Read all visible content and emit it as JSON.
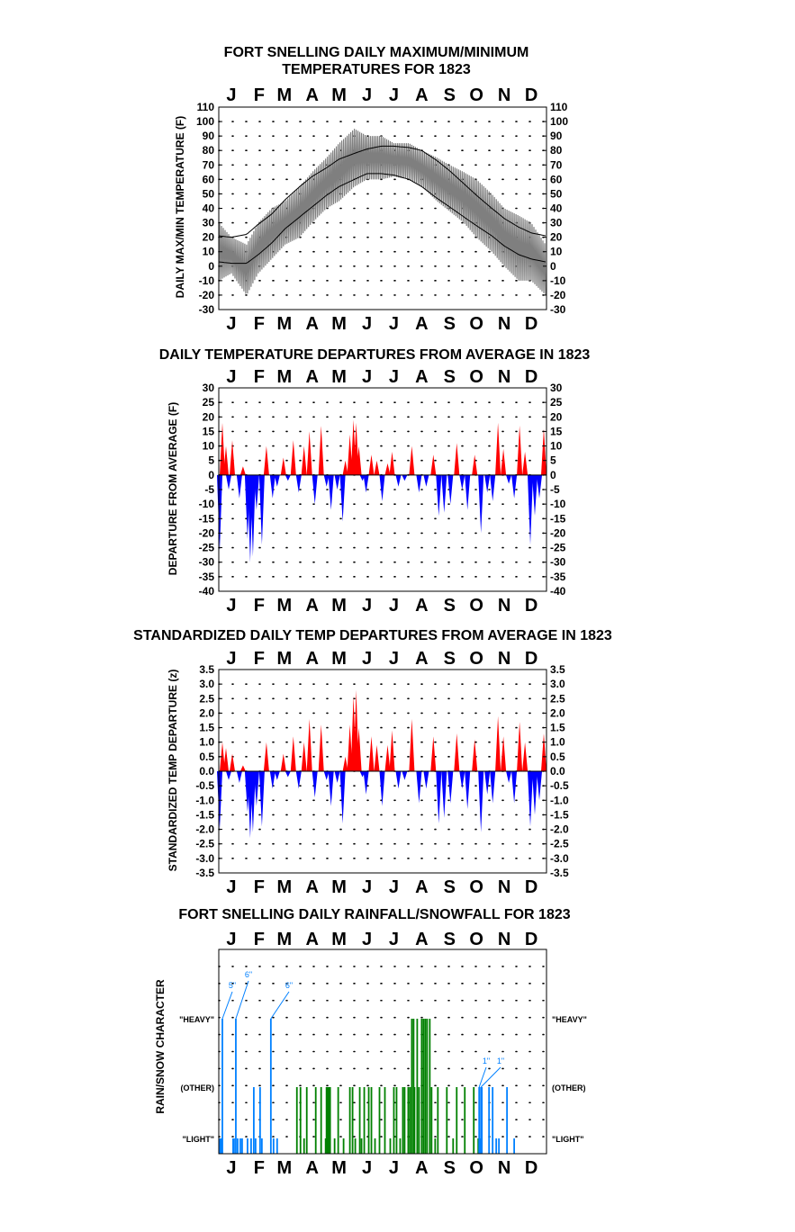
{
  "months": [
    "J",
    "F",
    "M",
    "A",
    "M",
    "J",
    "J",
    "A",
    "S",
    "O",
    "N",
    "D"
  ],
  "colors": {
    "frame": "#000000",
    "temp_series": "#7f7f7f",
    "normal_lines": "#000000",
    "positive": "#ff0000",
    "negative": "#0000ff",
    "rain": "#0080ff",
    "rain_summer": "#008000",
    "grid_dots": "#000000"
  },
  "chart_data": [
    {
      "type": "line",
      "title": "FORT SNELLING DAILY MAXIMUM/MINIMUM",
      "subtitle": "TEMPERATURES FOR 1823",
      "ylabel": "DAILY MAX/MIN TEMPERATURE (F)",
      "ylim": [
        -30,
        110
      ],
      "yticks": [
        "-30",
        "-20",
        "-10",
        "0",
        "10",
        "20",
        "30",
        "40",
        "50",
        "60",
        "70",
        "80",
        "90",
        "100",
        "110"
      ],
      "x_unit": "day of year 1823",
      "series": [
        {
          "style": "daily max/min range band",
          "x": [
            1,
            15,
            32,
            45,
            60,
            75,
            91,
            105,
            121,
            135,
            152,
            166,
            182,
            196,
            213,
            227,
            244,
            258,
            274,
            288,
            305,
            319,
            335,
            349,
            365
          ],
          "low": [
            -10,
            -5,
            -20,
            -5,
            5,
            15,
            20,
            30,
            40,
            45,
            55,
            60,
            60,
            62,
            60,
            55,
            45,
            38,
            30,
            20,
            10,
            0,
            -10,
            -10,
            -20
          ],
          "high": [
            30,
            20,
            15,
            30,
            40,
            45,
            55,
            65,
            75,
            85,
            95,
            90,
            90,
            85,
            85,
            80,
            75,
            70,
            65,
            60,
            50,
            40,
            35,
            30,
            15
          ]
        },
        {
          "style": "normal max",
          "x": [
            1,
            15,
            32,
            45,
            60,
            75,
            91,
            105,
            121,
            135,
            152,
            166,
            182,
            196,
            213,
            227,
            244,
            258,
            274,
            288,
            305,
            319,
            335,
            349,
            365
          ],
          "values": [
            21,
            20,
            22,
            29,
            36,
            46,
            55,
            62,
            68,
            74,
            78,
            81,
            83,
            83,
            82,
            80,
            73,
            66,
            57,
            49,
            40,
            33,
            27,
            23,
            21
          ]
        },
        {
          "style": "normal min",
          "x": [
            1,
            15,
            32,
            45,
            60,
            75,
            91,
            105,
            121,
            135,
            152,
            166,
            182,
            196,
            213,
            227,
            244,
            258,
            274,
            288,
            305,
            319,
            335,
            349,
            365
          ],
          "values": [
            3,
            2,
            2,
            8,
            16,
            26,
            34,
            41,
            49,
            55,
            60,
            64,
            64,
            63,
            60,
            55,
            47,
            41,
            34,
            28,
            21,
            14,
            8,
            5,
            3
          ]
        }
      ]
    },
    {
      "type": "bar",
      "title": "DAILY TEMPERATURE DEPARTURES FROM AVERAGE IN 1823",
      "ylabel": "DEPARTURE FROM AVERAGE (F)",
      "ylim": [
        -40,
        30
      ],
      "yticks": [
        "-40",
        "-35",
        "-30",
        "-25",
        "-20",
        "-15",
        "-10",
        "-5",
        "0",
        "5",
        "10",
        "15",
        "20",
        "25",
        "30"
      ],
      "x_unit": "day of year 1823",
      "x": [
        2,
        5,
        9,
        12,
        16,
        24,
        28,
        33,
        36,
        39,
        43,
        49,
        54,
        61,
        66,
        73,
        78,
        84,
        90,
        96,
        102,
        108,
        115,
        121,
        126,
        133,
        139,
        142,
        147,
        151,
        154,
        157,
        161,
        165,
        171,
        177,
        183,
        189,
        194,
        201,
        208,
        216,
        224,
        232,
        240,
        246,
        252,
        259,
        266,
        272,
        278,
        286,
        293,
        300,
        306,
        312,
        318,
        324,
        330,
        336,
        342,
        348,
        353,
        358,
        363
      ],
      "values": [
        -26,
        18,
        10,
        -5,
        12,
        -8,
        3,
        -22,
        -30,
        -28,
        -12,
        -24,
        10,
        -8,
        -4,
        6,
        -2,
        12,
        -6,
        10,
        15,
        -10,
        17,
        -4,
        -12,
        -5,
        -16,
        5,
        14,
        19,
        18,
        10,
        -2,
        -6,
        7,
        5,
        -9,
        4,
        8,
        -4,
        -2,
        10,
        -6,
        -4,
        7,
        -14,
        -13,
        -10,
        11,
        -5,
        -12,
        7,
        -20,
        -6,
        -9,
        18,
        9,
        -3,
        -8,
        17,
        8,
        -24,
        -14,
        -8,
        16
      ]
    },
    {
      "type": "bar",
      "title": "STANDARDIZED DAILY TEMP DEPARTURES FROM AVERAGE IN 1823",
      "ylabel": "STANDARDIZED TEMP DEPARTURE (z)",
      "ylim": [
        -3.5,
        3.5
      ],
      "yticks": [
        "-3.5",
        "-3.0",
        "-2.5",
        "-2.0",
        "-1.5",
        "-1.0",
        "-0.5",
        "0.0",
        "0.5",
        "1.0",
        "1.5",
        "2.0",
        "2.5",
        "3.0",
        "3.5"
      ],
      "x_unit": "day of year 1823",
      "x": [
        2,
        5,
        9,
        12,
        16,
        24,
        28,
        33,
        36,
        39,
        43,
        49,
        54,
        61,
        66,
        73,
        78,
        84,
        90,
        96,
        102,
        108,
        115,
        121,
        126,
        133,
        139,
        142,
        147,
        151,
        154,
        157,
        161,
        165,
        171,
        177,
        183,
        189,
        194,
        201,
        208,
        216,
        224,
        232,
        240,
        246,
        252,
        259,
        266,
        272,
        278,
        286,
        293,
        300,
        306,
        312,
        318,
        324,
        330,
        336,
        342,
        348,
        353,
        358,
        363
      ],
      "values": [
        -2.0,
        1.0,
        0.8,
        -0.3,
        0.6,
        -0.4,
        0.2,
        -1.4,
        -2.3,
        -2.1,
        -1.2,
        -1.9,
        1.0,
        -0.6,
        -0.3,
        0.6,
        -0.2,
        1.2,
        -0.6,
        1.0,
        1.8,
        -0.9,
        1.6,
        -0.3,
        -1.2,
        -0.4,
        -1.8,
        0.5,
        1.6,
        2.6,
        2.8,
        1.5,
        -0.2,
        -0.8,
        1.2,
        0.9,
        -1.2,
        0.9,
        1.4,
        -0.6,
        -0.3,
        1.8,
        -1.1,
        -0.6,
        1.2,
        -1.8,
        -1.6,
        -1.1,
        1.3,
        -0.6,
        -1.3,
        1.1,
        -2.1,
        -0.8,
        -1.1,
        1.9,
        1.2,
        -0.4,
        -1.1,
        1.7,
        1.0,
        -1.9,
        -1.5,
        -1.0,
        1.3
      ]
    },
    {
      "type": "bar",
      "title": "FORT SNELLING DAILY RAINFALL/SNOWFALL FOR 1823",
      "ylabel": "RAIN/SNOW CHARACTER",
      "levels": [
        "\"LIGHT\"",
        "(OTHER)",
        "\"HEAVY\""
      ],
      "x_unit": "day of year 1823",
      "precip_days": [
        {
          "x": 2,
          "level": 1
        },
        {
          "x": 3,
          "level": 1
        },
        {
          "x": 4,
          "level": 1
        },
        {
          "x": 5,
          "level": 3
        },
        {
          "x": 17,
          "level": 1
        },
        {
          "x": 18,
          "level": 1
        },
        {
          "x": 20,
          "level": 3
        },
        {
          "x": 22,
          "level": 1
        },
        {
          "x": 25,
          "level": 1
        },
        {
          "x": 27,
          "level": 1
        },
        {
          "x": 33,
          "level": 1
        },
        {
          "x": 37,
          "level": 1
        },
        {
          "x": 40,
          "level": 2
        },
        {
          "x": 42,
          "level": 1
        },
        {
          "x": 47,
          "level": 2
        },
        {
          "x": 49,
          "level": 1
        },
        {
          "x": 59,
          "level": 3
        },
        {
          "x": 62,
          "level": 1
        },
        {
          "x": 66,
          "level": 1
        },
        {
          "x": 88,
          "level": 2
        },
        {
          "x": 92,
          "level": 2
        },
        {
          "x": 96,
          "level": 1
        },
        {
          "x": 99,
          "level": 2
        },
        {
          "x": 109,
          "level": 2
        },
        {
          "x": 115,
          "level": 2
        },
        {
          "x": 120,
          "level": 1
        },
        {
          "x": 121,
          "level": 2
        },
        {
          "x": 122,
          "level": 2
        },
        {
          "x": 123,
          "level": 2
        },
        {
          "x": 124,
          "level": 2
        },
        {
          "x": 125,
          "level": 2
        },
        {
          "x": 130,
          "level": 1
        },
        {
          "x": 134,
          "level": 2
        },
        {
          "x": 140,
          "level": 1
        },
        {
          "x": 147,
          "level": 2
        },
        {
          "x": 150,
          "level": 2
        },
        {
          "x": 153,
          "level": 1
        },
        {
          "x": 158,
          "level": 2
        },
        {
          "x": 160,
          "level": 1
        },
        {
          "x": 163,
          "level": 2
        },
        {
          "x": 168,
          "level": 2
        },
        {
          "x": 171,
          "level": 2
        },
        {
          "x": 175,
          "level": 1
        },
        {
          "x": 180,
          "level": 2
        },
        {
          "x": 186,
          "level": 2
        },
        {
          "x": 192,
          "level": 1
        },
        {
          "x": 196,
          "level": 2
        },
        {
          "x": 199,
          "level": 2
        },
        {
          "x": 203,
          "level": 1
        },
        {
          "x": 206,
          "level": 2
        },
        {
          "x": 208,
          "level": 2
        },
        {
          "x": 212,
          "level": 2
        },
        {
          "x": 214,
          "level": 2
        },
        {
          "x": 216,
          "level": 3
        },
        {
          "x": 218,
          "level": 3
        },
        {
          "x": 219,
          "level": 2
        },
        {
          "x": 222,
          "level": 3
        },
        {
          "x": 224,
          "level": 2
        },
        {
          "x": 227,
          "level": 3
        },
        {
          "x": 229,
          "level": 3
        },
        {
          "x": 231,
          "level": 3
        },
        {
          "x": 233,
          "level": 3
        },
        {
          "x": 236,
          "level": 3
        },
        {
          "x": 238,
          "level": 2
        },
        {
          "x": 242,
          "level": 1
        },
        {
          "x": 245,
          "level": 2
        },
        {
          "x": 255,
          "level": 2
        },
        {
          "x": 262,
          "level": 1
        },
        {
          "x": 266,
          "level": 2
        },
        {
          "x": 275,
          "level": 2
        },
        {
          "x": 285,
          "level": 2
        },
        {
          "x": 290,
          "level": 1
        },
        {
          "x": 291,
          "level": 2
        },
        {
          "x": 292,
          "level": 1
        },
        {
          "x": 293,
          "level": 2
        },
        {
          "x": 294,
          "level": 2
        },
        {
          "x": 302,
          "level": 2
        },
        {
          "x": 306,
          "level": 2
        },
        {
          "x": 310,
          "level": 1
        },
        {
          "x": 313,
          "level": 1
        },
        {
          "x": 322,
          "level": 2
        },
        {
          "x": 330,
          "level": 1
        }
      ],
      "annotations": [
        {
          "text": "5\"",
          "x": 5
        },
        {
          "text": "6\"",
          "x": 20
        },
        {
          "text": "6\"",
          "x": 59
        },
        {
          "text": "1\"",
          "x": 291
        },
        {
          "text": "1\"",
          "x": 293
        }
      ]
    }
  ]
}
